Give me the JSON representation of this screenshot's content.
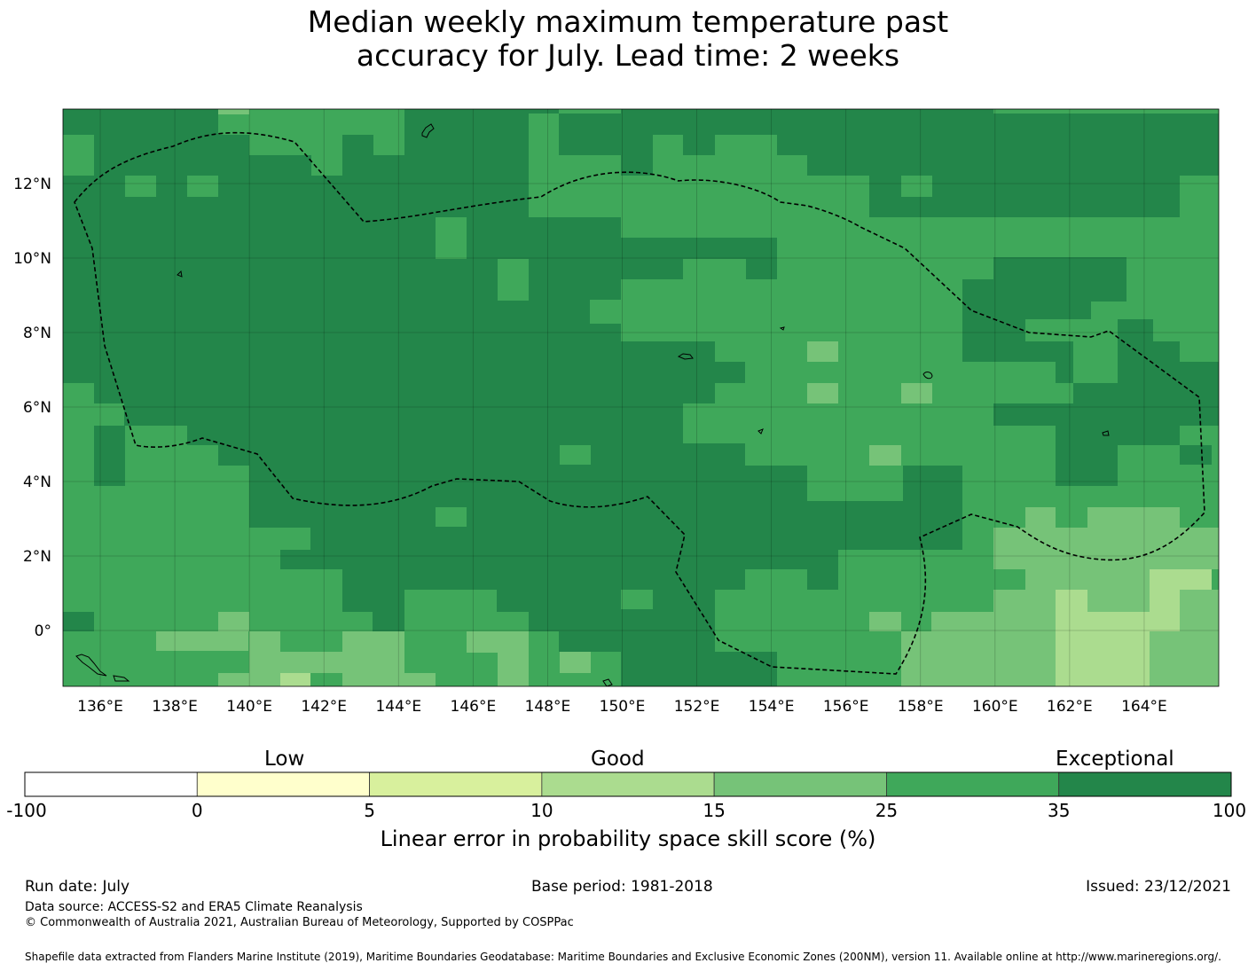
{
  "title": {
    "line1": "Median weekly maximum temperature past",
    "line2": "accuracy for July. Lead time: 2 weeks"
  },
  "map": {
    "lon_range": [
      135,
      166
    ],
    "lat_range": [
      -1.5,
      14
    ],
    "x_ticks": [
      "136°E",
      "138°E",
      "140°E",
      "142°E",
      "144°E",
      "146°E",
      "148°E",
      "150°E",
      "152°E",
      "154°E",
      "156°E",
      "158°E",
      "160°E",
      "162°E",
      "164°E"
    ],
    "y_ticks": [
      "12°N",
      "10°N",
      "8°N",
      "6°N",
      "4°N",
      "2°N",
      "0°"
    ],
    "grid": true,
    "boundary_style": "dashed",
    "class_colors": {
      "35-100": "#23864a",
      "25-35": "#3fa85a",
      "15-25": "#76c378",
      "10-15": "#abdc8f",
      "5-10": "#d8f09d",
      "0-5": "#ffffcc",
      "-100-0": "#ffffff"
    }
  },
  "colorbar": {
    "categories": [
      {
        "label": "Low"
      },
      {
        "label": "Good"
      },
      {
        "label": "Exceptional"
      }
    ],
    "bins": [
      {
        "range": "-100 to 0",
        "color": "#ffffff"
      },
      {
        "range": "0 to 5",
        "color": "#ffffcc"
      },
      {
        "range": "5 to 10",
        "color": "#d8f09d"
      },
      {
        "range": "10 to 15",
        "color": "#abdc8f"
      },
      {
        "range": "15 to 25",
        "color": "#76c378"
      },
      {
        "range": "25 to 35",
        "color": "#3fa85a"
      },
      {
        "range": "35 to 100",
        "color": "#23864a"
      }
    ],
    "tick_labels": [
      "-100",
      "0",
      "5",
      "10",
      "15",
      "25",
      "35",
      "100"
    ],
    "title": "Linear error in probability space skill score (%)"
  },
  "footer": {
    "run_date": "Run date: July",
    "base_period": "Base period: 1981-2018",
    "issued": "Issued: 23/12/2021",
    "data_source": "Data source: ACCESS-S2 and ERA5 Climate Reanalysis",
    "copyright": "© Commonwealth of Australia 2021, Australian Bureau of Meteorology, Supported by COSPPac",
    "shapefile": "Shapefile data extracted from Flanders Marine Institute (2019), Maritime Boundaries Geodatabase: Maritime Boundaries and Exclusive Economic Zones (200NM), version 11. Available online at http://www.marineregions.org/."
  }
}
